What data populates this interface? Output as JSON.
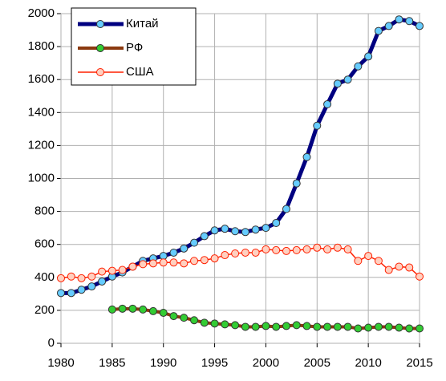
{
  "chart_data": {
    "type": "line",
    "x": [
      1980,
      1981,
      1982,
      1983,
      1984,
      1985,
      1986,
      1987,
      1988,
      1989,
      1990,
      1991,
      1992,
      1993,
      1994,
      1995,
      1996,
      1997,
      1998,
      1999,
      2000,
      2001,
      2002,
      2003,
      2004,
      2005,
      2006,
      2007,
      2008,
      2009,
      2010,
      2011,
      2012,
      2013,
      2014,
      2015
    ],
    "series": [
      {
        "name": "Китай",
        "color": "#000080",
        "marker_color": "#66ccff",
        "values": [
          305,
          305,
          325,
          345,
          375,
          405,
          430,
          465,
          500,
          515,
          530,
          550,
          575,
          610,
          650,
          685,
          695,
          680,
          675,
          690,
          700,
          730,
          815,
          970,
          1130,
          1320,
          1450,
          1575,
          1600,
          1680,
          1740,
          1895,
          1925,
          1965,
          1955,
          1925
        ]
      },
      {
        "name": "РФ",
        "color": "#8b3a0f",
        "marker_color": "#33cc33",
        "values": [
          null,
          null,
          null,
          null,
          null,
          205,
          210,
          210,
          205,
          195,
          185,
          165,
          155,
          140,
          125,
          120,
          115,
          110,
          100,
          100,
          105,
          100,
          105,
          110,
          105,
          100,
          100,
          100,
          100,
          90,
          95,
          100,
          100,
          95,
          90,
          90
        ]
      },
      {
        "name": "США",
        "color": "#ff2000",
        "marker_color": "#ffd0c0",
        "values": [
          395,
          405,
          395,
          405,
          435,
          440,
          445,
          465,
          480,
          485,
          490,
          490,
          485,
          500,
          505,
          515,
          535,
          545,
          550,
          550,
          570,
          565,
          560,
          565,
          570,
          580,
          570,
          580,
          570,
          500,
          530,
          500,
          445,
          465,
          460,
          405
        ]
      }
    ],
    "xlim": [
      1980,
      2015
    ],
    "xticks": [
      1980,
      1985,
      1990,
      1995,
      2000,
      2005,
      2010,
      2015
    ],
    "ylim": [
      0,
      2000
    ],
    "yticks": [
      0,
      200,
      400,
      600,
      800,
      1000,
      1200,
      1400,
      1600,
      1800,
      2000
    ],
    "grid": true,
    "legend": "upper left"
  }
}
